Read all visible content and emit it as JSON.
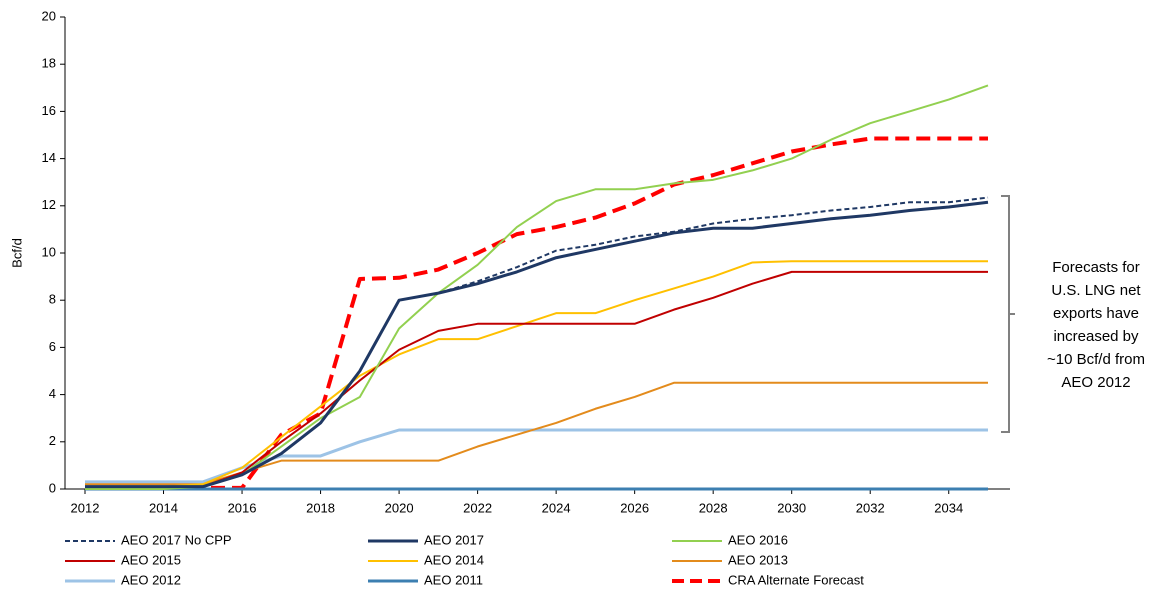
{
  "chart_data": {
    "type": "line",
    "ylabel": "Bcf/d",
    "x": [
      2012,
      2013,
      2014,
      2015,
      2016,
      2017,
      2018,
      2019,
      2020,
      2021,
      2022,
      2023,
      2024,
      2025,
      2026,
      2027,
      2028,
      2029,
      2030,
      2031,
      2032,
      2033,
      2034,
      2035
    ],
    "xlim": [
      2012,
      2035
    ],
    "xticks": [
      2012,
      2014,
      2016,
      2018,
      2020,
      2022,
      2024,
      2026,
      2028,
      2030,
      2032,
      2034
    ],
    "ylim": [
      0,
      20
    ],
    "yticks": [
      0,
      2,
      4,
      6,
      8,
      10,
      12,
      14,
      16,
      18,
      20
    ],
    "annotation": [
      "Forecasts for",
      "U.S. LNG net",
      "exports have",
      "increased by",
      "~10 Bcf/d from",
      "AEO 2012"
    ],
    "series": [
      {
        "name": "AEO 2017 No CPP",
        "color": "#1f3864",
        "dash": true,
        "width": 2,
        "values": [
          0.1,
          0.1,
          0.1,
          0.1,
          0.6,
          1.5,
          2.8,
          5.0,
          8.0,
          8.3,
          8.8,
          9.4,
          10.1,
          10.35,
          10.7,
          10.9,
          11.25,
          11.45,
          11.6,
          11.8,
          11.95,
          12.15,
          12.15,
          12.35
        ]
      },
      {
        "name": "AEO 2017",
        "color": "#1f3864",
        "dash": false,
        "width": 3,
        "values": [
          0.1,
          0.1,
          0.1,
          0.1,
          0.6,
          1.5,
          2.8,
          5.0,
          8.0,
          8.3,
          8.7,
          9.2,
          9.8,
          10.15,
          10.5,
          10.85,
          11.05,
          11.05,
          11.25,
          11.45,
          11.6,
          11.8,
          11.95,
          12.15
        ]
      },
      {
        "name": "AEO 2016",
        "color": "#92d050",
        "dash": false,
        "width": 2,
        "values": [
          0,
          0,
          0,
          0.1,
          0.6,
          1.8,
          3.0,
          3.9,
          6.8,
          8.3,
          9.5,
          11.1,
          12.2,
          12.7,
          12.7,
          12.95,
          13.1,
          13.5,
          14.0,
          14.8,
          15.5,
          16.0,
          16.5,
          17.1
        ]
      },
      {
        "name": "AEO 2015",
        "color": "#c00000",
        "dash": false,
        "width": 2,
        "values": [
          0.1,
          0.1,
          0.1,
          0.1,
          0.7,
          2.0,
          3.2,
          4.6,
          5.9,
          6.7,
          7.0,
          7.0,
          7.0,
          7.0,
          7.0,
          7.6,
          8.1,
          8.7,
          9.2,
          9.2,
          9.2,
          9.2,
          9.2,
          9.2
        ]
      },
      {
        "name": "AEO 2014",
        "color": "#ffc000",
        "dash": false,
        "width": 2,
        "values": [
          0.1,
          0.1,
          0.1,
          0.2,
          0.9,
          2.2,
          3.5,
          4.8,
          5.7,
          6.35,
          6.35,
          6.9,
          7.45,
          7.45,
          8.0,
          8.5,
          9.0,
          9.6,
          9.65,
          9.65,
          9.65,
          9.65,
          9.65,
          9.65
        ]
      },
      {
        "name": "AEO 2013",
        "color": "#e38b1c",
        "dash": false,
        "width": 2,
        "values": [
          0.2,
          0.2,
          0.2,
          0.2,
          0.7,
          1.2,
          1.2,
          1.2,
          1.2,
          1.2,
          1.8,
          2.3,
          2.8,
          3.4,
          3.9,
          4.5,
          4.5,
          4.5,
          4.5,
          4.5,
          4.5,
          4.5,
          4.5,
          4.5
        ]
      },
      {
        "name": "AEO 2012",
        "color": "#9dc3e6",
        "dash": false,
        "width": 3,
        "values": [
          0.3,
          0.3,
          0.3,
          0.3,
          0.9,
          1.4,
          1.4,
          2.0,
          2.5,
          2.5,
          2.5,
          2.5,
          2.5,
          2.5,
          2.5,
          2.5,
          2.5,
          2.5,
          2.5,
          2.5,
          2.5,
          2.5,
          2.5,
          2.5
        ]
      },
      {
        "name": "AEO 2011",
        "color": "#3c7fb1",
        "dash": false,
        "width": 3,
        "values": [
          0,
          0,
          0,
          0,
          0,
          0,
          0,
          0,
          0,
          0,
          0,
          0,
          0,
          0,
          0,
          0,
          0,
          0,
          0,
          0,
          0,
          0,
          0,
          0
        ]
      },
      {
        "name": "CRA Alternate Forecast",
        "color": "#ff0000",
        "dash": true,
        "width": 4,
        "values": [
          0.05,
          0.05,
          0.05,
          0.05,
          0.05,
          2.3,
          3.2,
          8.9,
          8.95,
          9.3,
          10.0,
          10.8,
          11.1,
          11.5,
          12.1,
          12.9,
          13.3,
          13.8,
          14.3,
          14.6,
          14.85,
          14.85,
          14.85,
          14.85
        ]
      }
    ]
  }
}
